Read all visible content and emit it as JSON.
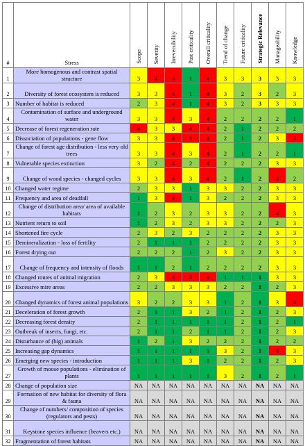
{
  "headers": {
    "num": "#",
    "stress": "Stress",
    "criteria": [
      "Scope",
      "Severity",
      "Irreversibility",
      "Past criticality",
      "Overall criticality",
      "Trend of change",
      "Future criticality",
      "Strategic Relevance",
      "Manageability",
      "Knowledge"
    ]
  },
  "colors": {
    "1": "#00b050",
    "2": "#92d050",
    "3": "#ffff00",
    "4": "#ff0000",
    "NA": "#d9d9d9",
    "stress_bg": "#ccccff",
    "header_bg": "#ffffff"
  },
  "rows": [
    {
      "num": "1",
      "stress": "More homogenous and contrast spatial structure",
      "values": [
        "3",
        "4",
        "4",
        "1",
        "4",
        "3",
        "3",
        "3",
        "3",
        "3"
      ]
    },
    {
      "num": "2",
      "stress": "Diversity of forest ecosystem is reduced",
      "values": [
        "3",
        "3",
        "4",
        "1",
        "4",
        "3",
        "2",
        "3",
        "2",
        "3"
      ]
    },
    {
      "num": "3",
      "stress": "Number of habitat is reduced",
      "values": [
        "2",
        "3",
        "4",
        "1",
        "4",
        "3",
        "2",
        "3",
        "3",
        "3"
      ]
    },
    {
      "num": "4",
      "stress": "Contamination of surface and underground water",
      "values": [
        "3",
        "3",
        "4",
        "3",
        "4",
        "2",
        "2",
        "2",
        "2",
        "1"
      ]
    },
    {
      "num": "5",
      "stress": "Decrease of forest regeneration rate",
      "values": [
        "4",
        "3",
        "3",
        "4",
        "4",
        "2",
        "1",
        "2",
        "2",
        "2"
      ]
    },
    {
      "num": "6",
      "stress": "Dissociation of populations - gene flow",
      "values": [
        "3",
        "3",
        "4",
        "4",
        "4",
        "2",
        "1",
        "2",
        "3",
        "4"
      ]
    },
    {
      "num": "7",
      "stress": "Change of forest age distribution - less very old trees",
      "values": [
        "3",
        "3",
        "4",
        "3",
        "4",
        "2",
        "1",
        "2",
        "2",
        "1"
      ]
    },
    {
      "num": "8",
      "stress": "Vulnerable species extinction",
      "values": [
        "3",
        "2",
        "4",
        "2",
        "4",
        "2",
        "2",
        "2",
        "3",
        "3"
      ]
    },
    {
      "num": "9",
      "stress": "Change of wood species - changed cycles",
      "values": [
        "3",
        "3",
        "4",
        "3",
        "4",
        "2",
        "1",
        "2",
        "4",
        "2"
      ]
    },
    {
      "num": "10",
      "stress": "Changed water regime",
      "values": [
        "2",
        "3",
        "3",
        "1",
        "3",
        "3",
        "2",
        "2",
        "3",
        "3"
      ]
    },
    {
      "num": "11",
      "stress": "Frequency and area of deadfall",
      "values": [
        "1",
        "3",
        "4",
        "1",
        "3",
        "2",
        "2",
        "2",
        "3",
        "3"
      ]
    },
    {
      "num": "12",
      "stress": "Change of distribution area/ area of available habitats",
      "values": [
        "1",
        "2",
        "3",
        "2",
        "3",
        "3",
        "2",
        "2",
        "4",
        "3"
      ]
    },
    {
      "num": "13",
      "stress": "Nutrient return to soil",
      "values": [
        "1",
        "2",
        "3",
        "2",
        "3",
        "3",
        "2",
        "2",
        "2",
        "3"
      ]
    },
    {
      "num": "14",
      "stress": "Shortened fire cycle",
      "values": [
        "2",
        "3",
        "2",
        "3",
        "2",
        "2",
        "2",
        "2",
        "3",
        "3"
      ]
    },
    {
      "num": "15",
      "stress": "Demineralization - loss of fertility",
      "values": [
        "2",
        "1",
        "1",
        "1",
        "2",
        "2",
        "2",
        "2",
        "3",
        "3"
      ]
    },
    {
      "num": "16",
      "stress": "Forest drying out",
      "values": [
        "2",
        "2",
        "2",
        "1",
        "2",
        "3",
        "2",
        "2",
        "3",
        "3"
      ]
    },
    {
      "num": "17",
      "stress": "Change of frequency and intensity of floods",
      "values": [
        "1",
        "1",
        "2",
        "1",
        "2",
        "2",
        "2",
        "2",
        "3",
        "3"
      ]
    },
    {
      "num": "18",
      "stress": "Changed routes of animal migration",
      "values": [
        "2",
        "3",
        "4",
        "4",
        "4",
        "1",
        "1",
        "1",
        "3",
        "3"
      ]
    },
    {
      "num": "19",
      "stress": "Excessive mire areas",
      "values": [
        "2",
        "2",
        "3",
        "3",
        "3",
        "2",
        "2",
        "1",
        "2",
        "3"
      ]
    },
    {
      "num": "20",
      "stress": "Changed dynamics of forest animal populations",
      "values": [
        "3",
        "2",
        "2",
        "3",
        "3",
        "1",
        "2",
        "1",
        "3",
        "4"
      ]
    },
    {
      "num": "21",
      "stress": "Deceleration of forest growth",
      "values": [
        "2",
        "1",
        "1",
        "3",
        "2",
        "1",
        "2",
        "1",
        "2",
        "3"
      ]
    },
    {
      "num": "22",
      "stress": "Decreasing forest density",
      "values": [
        "2",
        "1",
        "1",
        "1",
        "1",
        "1",
        "2",
        "1",
        "2",
        "1"
      ]
    },
    {
      "num": "23",
      "stress": "Outbreak of insects, fungi, etc.",
      "values": [
        "2",
        "1",
        "1",
        "2",
        "1",
        "1",
        "2",
        "1",
        "2",
        "3"
      ]
    },
    {
      "num": "24",
      "stress": "Disturbance of (big) animals",
      "values": [
        "1",
        "2",
        "1",
        "3",
        "2",
        "2",
        "2",
        "1",
        "2",
        "2"
      ]
    },
    {
      "num": "25",
      "stress": "Increasing gap dynamics",
      "values": [
        "1",
        "1",
        "1",
        "1",
        "1",
        "3",
        "2",
        "1",
        "4",
        "3"
      ]
    },
    {
      "num": "26",
      "stress": "Emerging new species - introduction",
      "values": [
        "1",
        "1",
        "1",
        "3",
        "1",
        "2",
        "2",
        "1",
        "2",
        "3"
      ]
    },
    {
      "num": "27",
      "stress": "Growth of moose populations - elimination of plants",
      "values": [
        "1",
        "1",
        "1",
        "1",
        "1",
        "3",
        "2",
        "1",
        "2",
        "1"
      ]
    },
    {
      "num": "28",
      "stress": "Change of population size",
      "values": [
        "NA",
        "NA",
        "NA",
        "NA",
        "NA",
        "NA",
        "NA",
        "NA",
        "NA",
        "NA"
      ]
    },
    {
      "num": "29",
      "stress": "Formation of new habitat for diversity of flora & fauna",
      "values": [
        "NA",
        "NA",
        "NA",
        "NA",
        "NA",
        "NA",
        "NA",
        "NA",
        "NA",
        "NA"
      ]
    },
    {
      "num": "30",
      "stress": "Change of numbers/ composition of species (regulators and pests)",
      "values": [
        "NA",
        "NA",
        "NA",
        "NA",
        "NA",
        "NA",
        "NA",
        "NA",
        "NA",
        "NA"
      ]
    },
    {
      "num": "31",
      "stress": "Keystone species influence (beavers etc.)",
      "values": [
        "NA",
        "NA",
        "NA",
        "NA",
        "NA",
        "NA",
        "NA",
        "NA",
        "NA",
        "NA"
      ]
    },
    {
      "num": "32",
      "stress": "Fragmentation of forest habitats",
      "values": [
        "NA",
        "NA",
        "NA",
        "NA",
        "NA",
        "NA",
        "NA",
        "NA",
        "NA",
        "NA"
      ]
    }
  ]
}
